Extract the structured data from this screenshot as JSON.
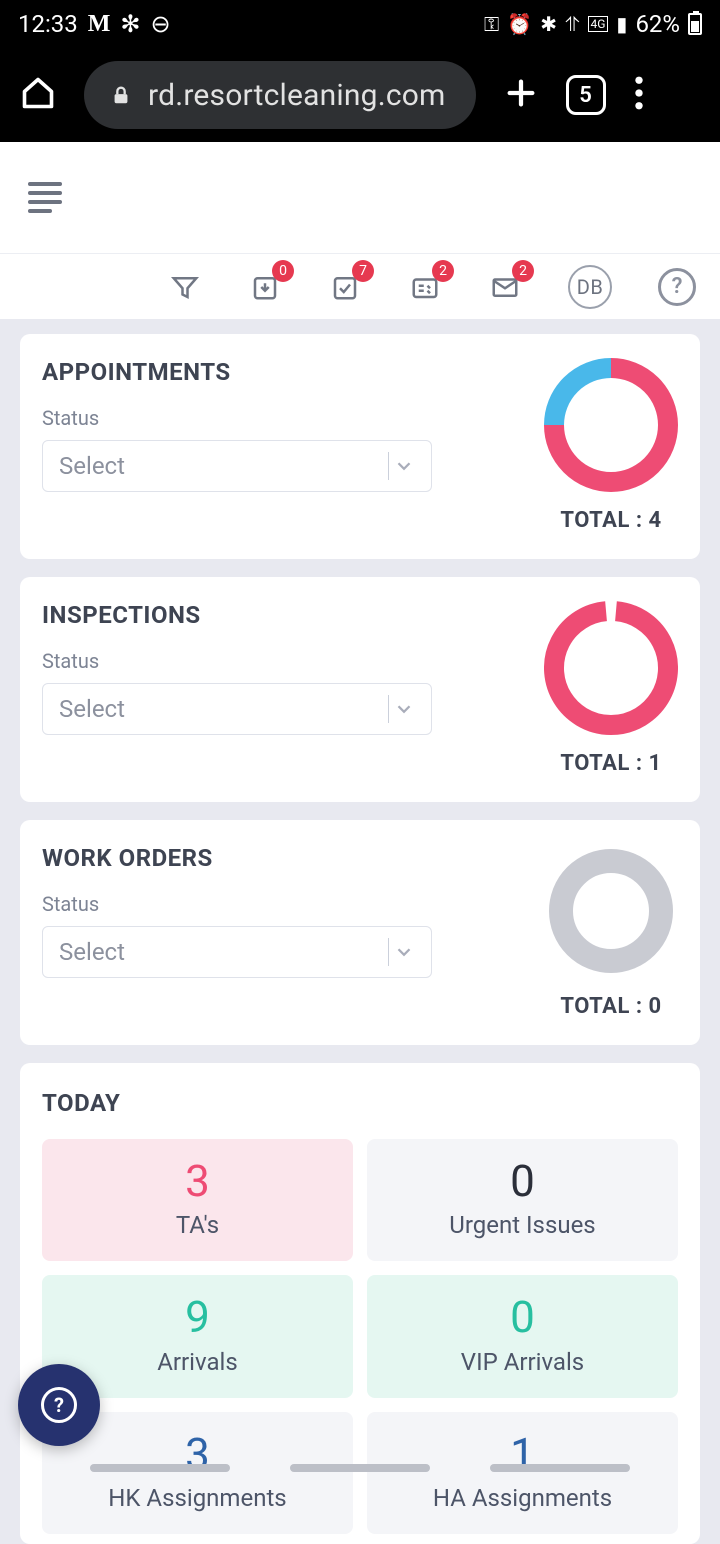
{
  "status_bar": {
    "time": "12:33",
    "battery": "62%"
  },
  "browser": {
    "url": "rd.resortcleaning.com",
    "tab_count": "5"
  },
  "toolbar": {
    "badges": {
      "inbox": "0",
      "tasks": "7",
      "checklist": "2",
      "mail": "2"
    },
    "avatar_initials": "DB"
  },
  "cards": {
    "appointments": {
      "title": "APPOINTMENTS",
      "status_label": "Status",
      "select_placeholder": "Select",
      "total_label": "TOTAL : 4",
      "chart": {
        "type": "donut",
        "segments": [
          {
            "value": 3,
            "color": "#ee4c74"
          },
          {
            "value": 1,
            "color": "#49b8ea"
          }
        ],
        "thickness": 20,
        "radius": 67,
        "background": "#ffffff"
      }
    },
    "inspections": {
      "title": "INSPECTIONS",
      "status_label": "Status",
      "select_placeholder": "Select",
      "total_label": "TOTAL : 1",
      "chart": {
        "type": "donut",
        "segments": [
          {
            "value": 1,
            "color": "#ee4c74"
          }
        ],
        "gap_deg": 10,
        "thickness": 20,
        "radius": 67,
        "background": "#ffffff"
      }
    },
    "work_orders": {
      "title": "WORK ORDERS",
      "status_label": "Status",
      "select_placeholder": "Select",
      "total_label": "TOTAL : 0",
      "chart": {
        "type": "donut",
        "segments": [],
        "empty_color": "#c9cbd2",
        "thickness": 24,
        "radius": 62,
        "background": "#ffffff"
      }
    }
  },
  "today": {
    "title": "TODAY",
    "stats": [
      {
        "value": "3",
        "label": "TA's",
        "bg": "#fbe6ec",
        "num_color": "#ee4c74"
      },
      {
        "value": "0",
        "label": "Urgent Issues",
        "bg": "#f4f5f8",
        "num_color": "#2b2f3a"
      },
      {
        "value": "9",
        "label": "Arrivals",
        "bg": "#e5f7f1",
        "num_color": "#27bfa0"
      },
      {
        "value": "0",
        "label": "VIP Arrivals",
        "bg": "#e5f7f1",
        "num_color": "#27bfa0"
      },
      {
        "value": "3",
        "label": "HK Assignments",
        "bg": "#f4f5f8",
        "num_color": "#2e63a8"
      },
      {
        "value": "1",
        "label": "HA Assignments",
        "bg": "#f4f5f8",
        "num_color": "#2e63a8"
      }
    ]
  }
}
